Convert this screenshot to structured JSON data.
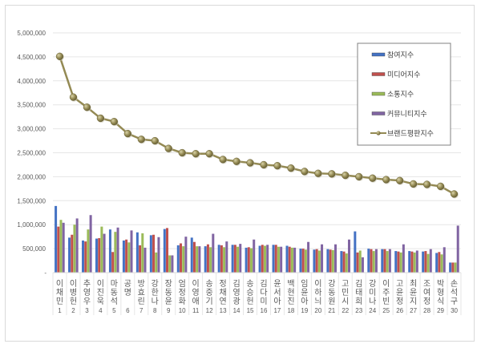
{
  "chart_data": {
    "type": "bar",
    "title": "",
    "xlabel": "",
    "ylabel": "",
    "ylim": [
      0,
      5000000
    ],
    "yticks": [
      "-",
      "500,000",
      "1,000,000",
      "1,500,000",
      "2,000,000",
      "2,500,000",
      "3,000,000",
      "3,500,000",
      "4,000,000",
      "4,500,000",
      "5,000,000"
    ],
    "grid": true,
    "legend_position": "upper-right-inside",
    "categories": [
      "이채민",
      "이병헌",
      "추영우",
      "이진욱",
      "마동석",
      "공명",
      "방효린",
      "강한나",
      "장동윤",
      "엄정화",
      "이영애",
      "송중기",
      "정채연",
      "김영광",
      "송승헌",
      "김다미",
      "윤서아",
      "백현진",
      "임윤아",
      "이하늬",
      "강동원",
      "고민시",
      "김태희",
      "강미나",
      "이주빈",
      "고윤정",
      "최윤지",
      "조여정",
      "박형식",
      "손석구"
    ],
    "ranks": [
      "1",
      "2",
      "3",
      "4",
      "5",
      "6",
      "7",
      "8",
      "9",
      "10",
      "11",
      "12",
      "13",
      "14",
      "15",
      "16",
      "17",
      "18",
      "19",
      "20",
      "21",
      "22",
      "23",
      "24",
      "25",
      "26",
      "27",
      "28",
      "29",
      "30"
    ],
    "series": [
      {
        "name": "참여지수",
        "type": "bar",
        "color": "#4472c4",
        "values": [
          1390000,
          730000,
          670000,
          710000,
          900000,
          670000,
          840000,
          780000,
          910000,
          570000,
          730000,
          550000,
          580000,
          580000,
          520000,
          560000,
          580000,
          560000,
          500000,
          480000,
          490000,
          450000,
          860000,
          500000,
          490000,
          450000,
          450000,
          440000,
          410000,
          210000
        ]
      },
      {
        "name": "미디어지수",
        "type": "bar",
        "color": "#c0504d",
        "values": [
          960000,
          790000,
          650000,
          720000,
          430000,
          690000,
          570000,
          790000,
          930000,
          610000,
          640000,
          590000,
          570000,
          580000,
          530000,
          580000,
          580000,
          540000,
          500000,
          490000,
          480000,
          440000,
          420000,
          490000,
          490000,
          440000,
          440000,
          450000,
          430000,
          210000
        ]
      },
      {
        "name": "소통지수",
        "type": "bar",
        "color": "#9bbb59",
        "values": [
          1100000,
          1000000,
          900000,
          960000,
          850000,
          630000,
          820000,
          420000,
          360000,
          550000,
          550000,
          530000,
          530000,
          540000,
          510000,
          560000,
          540000,
          520000,
          480000,
          460000,
          470000,
          400000,
          460000,
          450000,
          450000,
          420000,
          420000,
          390000,
          380000,
          210000
        ]
      },
      {
        "name": "커뮤니티지수",
        "type": "bar",
        "color": "#8064a2",
        "values": [
          1040000,
          1130000,
          1200000,
          810000,
          940000,
          880000,
          520000,
          740000,
          360000,
          750000,
          550000,
          810000,
          650000,
          600000,
          690000,
          580000,
          540000,
          520000,
          640000,
          590000,
          590000,
          690000,
          320000,
          490000,
          490000,
          590000,
          460000,
          490000,
          530000,
          980000
        ]
      },
      {
        "name": "브랜드평판지수",
        "type": "line",
        "color": "#948a54",
        "values": [
          4510000,
          3660000,
          3450000,
          3220000,
          3150000,
          2900000,
          2780000,
          2750000,
          2590000,
          2500000,
          2480000,
          2480000,
          2360000,
          2320000,
          2290000,
          2250000,
          2230000,
          2180000,
          2110000,
          2070000,
          2060000,
          2030000,
          2000000,
          1970000,
          1940000,
          1920000,
          1850000,
          1840000,
          1800000,
          1640000
        ]
      }
    ]
  },
  "legend": {
    "items": [
      "참여지수",
      "미디어지수",
      "소통지수",
      "커뮤니티지수",
      "브랜드평판지수"
    ]
  }
}
